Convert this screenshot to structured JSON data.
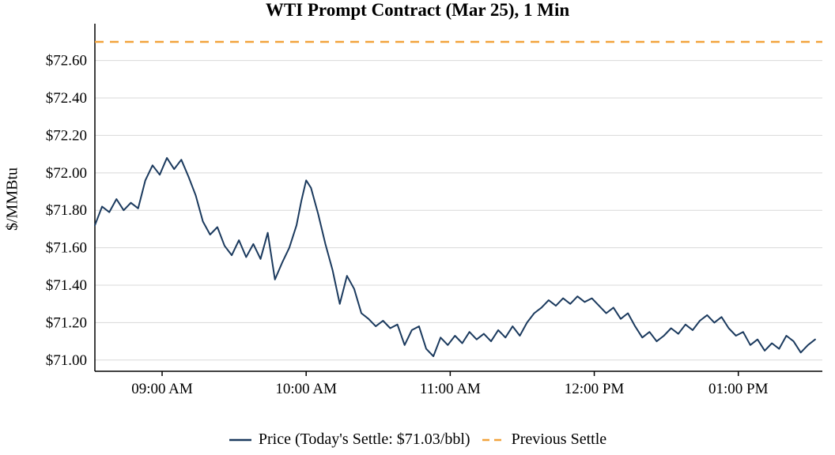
{
  "chart_data": {
    "type": "line",
    "title": "WTI Prompt Contract (Mar 25), 1 Min",
    "ylabel": "$/MMBtu",
    "xlabel": "",
    "ylim": [
      70.94,
      72.78
    ],
    "x_range": [
      "08:32",
      "13:35"
    ],
    "grid": "horizontal",
    "legend_position": "bottom-center",
    "previous_settle": 72.7,
    "todays_settle_label": "$71.03/bbl",
    "y_ticks": [
      {
        "value": 71.0,
        "label": "$71.00"
      },
      {
        "value": 71.2,
        "label": "$71.20"
      },
      {
        "value": 71.4,
        "label": "$71.40"
      },
      {
        "value": 71.6,
        "label": "$71.60"
      },
      {
        "value": 71.8,
        "label": "$71.80"
      },
      {
        "value": 72.0,
        "label": "$72.00"
      },
      {
        "value": 72.2,
        "label": "$72.20"
      },
      {
        "value": 72.4,
        "label": "$72.40"
      },
      {
        "value": 72.6,
        "label": "$72.60"
      }
    ],
    "x_ticks": [
      {
        "time": "09:00",
        "label": "09:00 AM"
      },
      {
        "time": "10:00",
        "label": "10:00 AM"
      },
      {
        "time": "11:00",
        "label": "11:00 AM"
      },
      {
        "time": "12:00",
        "label": "12:00 PM"
      },
      {
        "time": "13:00",
        "label": "01:00 PM"
      }
    ],
    "series": [
      {
        "name": "Price",
        "times": [
          "08:32",
          "08:35",
          "08:38",
          "08:41",
          "08:44",
          "08:47",
          "08:50",
          "08:53",
          "08:56",
          "08:59",
          "09:02",
          "09:05",
          "09:08",
          "09:11",
          "09:14",
          "09:17",
          "09:20",
          "09:23",
          "09:26",
          "09:29",
          "09:32",
          "09:35",
          "09:38",
          "09:41",
          "09:44",
          "09:47",
          "09:50",
          "09:53",
          "09:56",
          "09:58",
          "10:00",
          "10:02",
          "10:05",
          "10:08",
          "10:11",
          "10:14",
          "10:17",
          "10:20",
          "10:23",
          "10:26",
          "10:29",
          "10:32",
          "10:35",
          "10:38",
          "10:41",
          "10:44",
          "10:47",
          "10:50",
          "10:53",
          "10:56",
          "10:59",
          "11:02",
          "11:05",
          "11:08",
          "11:11",
          "11:14",
          "11:17",
          "11:20",
          "11:23",
          "11:26",
          "11:29",
          "11:32",
          "11:35",
          "11:38",
          "11:41",
          "11:44",
          "11:47",
          "11:50",
          "11:53",
          "11:56",
          "11:59",
          "12:02",
          "12:05",
          "12:08",
          "12:11",
          "12:14",
          "12:17",
          "12:20",
          "12:23",
          "12:26",
          "12:29",
          "12:32",
          "12:35",
          "12:38",
          "12:41",
          "12:44",
          "12:47",
          "12:50",
          "12:53",
          "12:56",
          "12:59",
          "13:02",
          "13:05",
          "13:08",
          "13:11",
          "13:14",
          "13:17",
          "13:20",
          "13:23",
          "13:26",
          "13:29",
          "13:32"
        ],
        "values": [
          71.72,
          71.82,
          71.79,
          71.86,
          71.8,
          71.84,
          71.81,
          71.96,
          72.04,
          71.99,
          72.08,
          72.02,
          72.07,
          71.98,
          71.88,
          71.74,
          71.67,
          71.71,
          71.61,
          71.56,
          71.64,
          71.55,
          71.62,
          71.54,
          71.68,
          71.43,
          71.52,
          71.6,
          71.72,
          71.85,
          71.96,
          71.92,
          71.78,
          71.62,
          71.48,
          71.3,
          71.45,
          71.38,
          71.25,
          71.22,
          71.18,
          71.21,
          71.17,
          71.19,
          71.08,
          71.16,
          71.18,
          71.06,
          71.02,
          71.12,
          71.08,
          71.13,
          71.09,
          71.15,
          71.11,
          71.14,
          71.1,
          71.16,
          71.12,
          71.18,
          71.13,
          71.2,
          71.25,
          71.28,
          71.32,
          71.29,
          71.33,
          71.3,
          71.34,
          71.31,
          71.33,
          71.29,
          71.25,
          71.28,
          71.22,
          71.25,
          71.18,
          71.12,
          71.15,
          71.1,
          71.13,
          71.17,
          71.14,
          71.19,
          71.16,
          71.21,
          71.24,
          71.2,
          71.23,
          71.17,
          71.13,
          71.15,
          71.08,
          71.11,
          71.05,
          71.09,
          71.06,
          71.13,
          71.1,
          71.04,
          71.08,
          71.11
        ]
      },
      {
        "name": "Previous Settle",
        "style": "dashed",
        "value": 72.7
      }
    ],
    "legend": {
      "price_label": "Price (Today's Settle: $71.03/bbl)",
      "settle_label": "Previous Settle"
    },
    "colors": {
      "price": "#1b3a5e",
      "previous_settle": "#F2A33C",
      "grid": "#d8d8d8",
      "axis": "#000000"
    }
  }
}
